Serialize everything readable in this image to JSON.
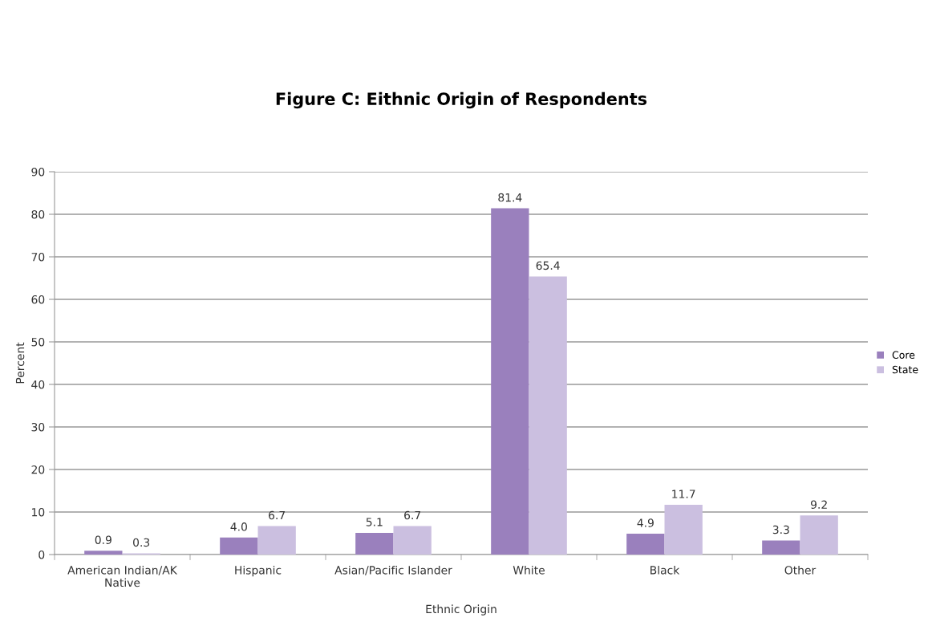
{
  "chart_data": {
    "type": "bar",
    "title": "Figure C: Eithnic Origin of Respondents",
    "xlabel": "Ethnic Origin",
    "ylabel": "Percent",
    "categories": [
      "American Indian/AK\nNative",
      "Hispanic",
      "Asian/Pacific Islander",
      "White",
      "Black",
      "Other"
    ],
    "series": [
      {
        "name": "Core",
        "color": "#9a80bd",
        "values": [
          0.9,
          4.0,
          5.1,
          81.4,
          4.9,
          3.3
        ],
        "value_labels": [
          "0.9",
          "4.0",
          "5.1",
          "81.4",
          "4.9",
          "3.3"
        ]
      },
      {
        "name": "State",
        "color": "#cbbfe0",
        "values": [
          0.3,
          6.7,
          6.7,
          65.4,
          11.7,
          9.2
        ],
        "value_labels": [
          "0.3",
          "6.7",
          "6.7",
          "65.4",
          "11.7",
          "9.2"
        ]
      }
    ],
    "ylim": [
      0,
      90
    ],
    "yticks": [
      0,
      10,
      20,
      30,
      40,
      50,
      60,
      70,
      80,
      90
    ],
    "grid": "y",
    "legend": "right"
  }
}
